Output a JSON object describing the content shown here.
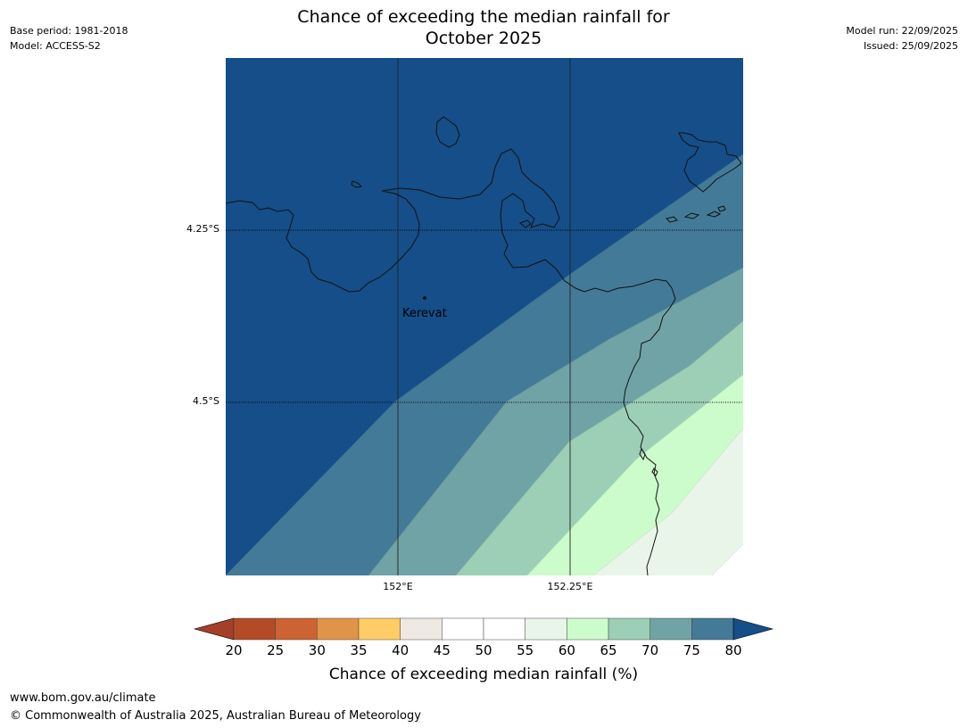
{
  "title_line1": "Chance of exceeding the median rainfall for",
  "title_line2": "October 2025",
  "meta_left": {
    "base_period": "Base period: 1981-2018",
    "model": "Model: ACCESS-S2"
  },
  "meta_right": {
    "model_run": "Model run: 22/09/2025",
    "issued": "Issued: 25/09/2025"
  },
  "map": {
    "place": "Kerevat",
    "lat_labels": [
      "4.25°S",
      "4.5°S"
    ],
    "lon_labels": [
      "152°E",
      "152.25°E"
    ]
  },
  "colorbar": {
    "title": "Chance of exceeding median rainfall (%)",
    "ticks": [
      "20",
      "25",
      "30",
      "35",
      "40",
      "45",
      "50",
      "55",
      "60",
      "65",
      "70",
      "75",
      "80"
    ],
    "colors": [
      "#a3402a",
      "#b34c26",
      "#cb6332",
      "#e09448",
      "#ffcc66",
      "#efe9e4",
      "#ffffff",
      "#ffffff",
      "#eaf5ea",
      "#ccfccc",
      "#9ccfb6",
      "#70a3a6",
      "#437a98",
      "#154e88"
    ]
  },
  "footer": {
    "url": "www.bom.gov.au/climate",
    "copyright": "© Commonwealth of Australia 2025, Australian Bureau of Meteorology"
  }
}
